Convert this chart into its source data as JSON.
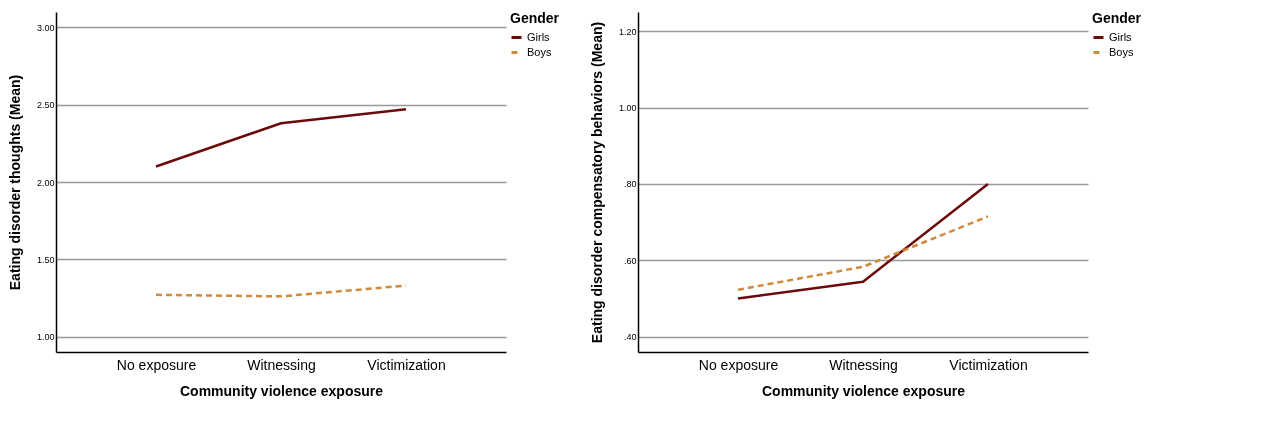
{
  "chart_data": [
    {
      "type": "line",
      "xlabel": "Community violence exposure",
      "ylabel": "Eating disorder thoughts (Mean)",
      "legend_title": "Gender",
      "legend": "top right",
      "grid": "y",
      "marker": "none",
      "categories": [
        "No exposure",
        "Witnessing",
        "Victimization"
      ],
      "ylim": [
        0.9,
        3.1
      ],
      "yticks": [
        {
          "value": 1,
          "label": "1.00"
        },
        {
          "value": 1.5,
          "label": "1.50"
        },
        {
          "value": 2,
          "label": "2.00"
        },
        {
          "value": 2.5,
          "label": "2.50"
        },
        {
          "value": 3,
          "label": "3.00"
        }
      ],
      "series": [
        {
          "name": "Girls",
          "color": "#6b0a0a",
          "line_style": "solid",
          "values": [
            2.1,
            2.38,
            2.47
          ]
        },
        {
          "name": "Boys",
          "color": "#d08a3a",
          "line_style": "dashed",
          "values": [
            1.27,
            1.26,
            1.33
          ]
        }
      ]
    },
    {
      "type": "line",
      "xlabel": "Community violence exposure",
      "ylabel": "Eating disorder compensatory behaviors (Mean)",
      "legend_title": "Gender",
      "legend": "top right",
      "grid": "y",
      "marker": "none",
      "categories": [
        "No exposure",
        "Witnessing",
        "Victimization"
      ],
      "ylim": [
        0.36,
        1.25
      ],
      "yticks": [
        {
          "value": 0.4,
          "label": ".40"
        },
        {
          "value": 0.6,
          "label": ".60"
        },
        {
          "value": 0.8,
          "label": ".80"
        },
        {
          "value": 1.0,
          "label": "1.00"
        },
        {
          "value": 1.2,
          "label": "1.20"
        }
      ],
      "series": [
        {
          "name": "Girls",
          "color": "#6b0a0a",
          "line_style": "solid",
          "values": [
            0.5,
            0.544,
            0.8
          ]
        },
        {
          "name": "Boys",
          "color": "#d08a3a",
          "line_style": "dashed",
          "values": [
            0.523,
            0.583,
            0.715
          ]
        }
      ]
    }
  ]
}
